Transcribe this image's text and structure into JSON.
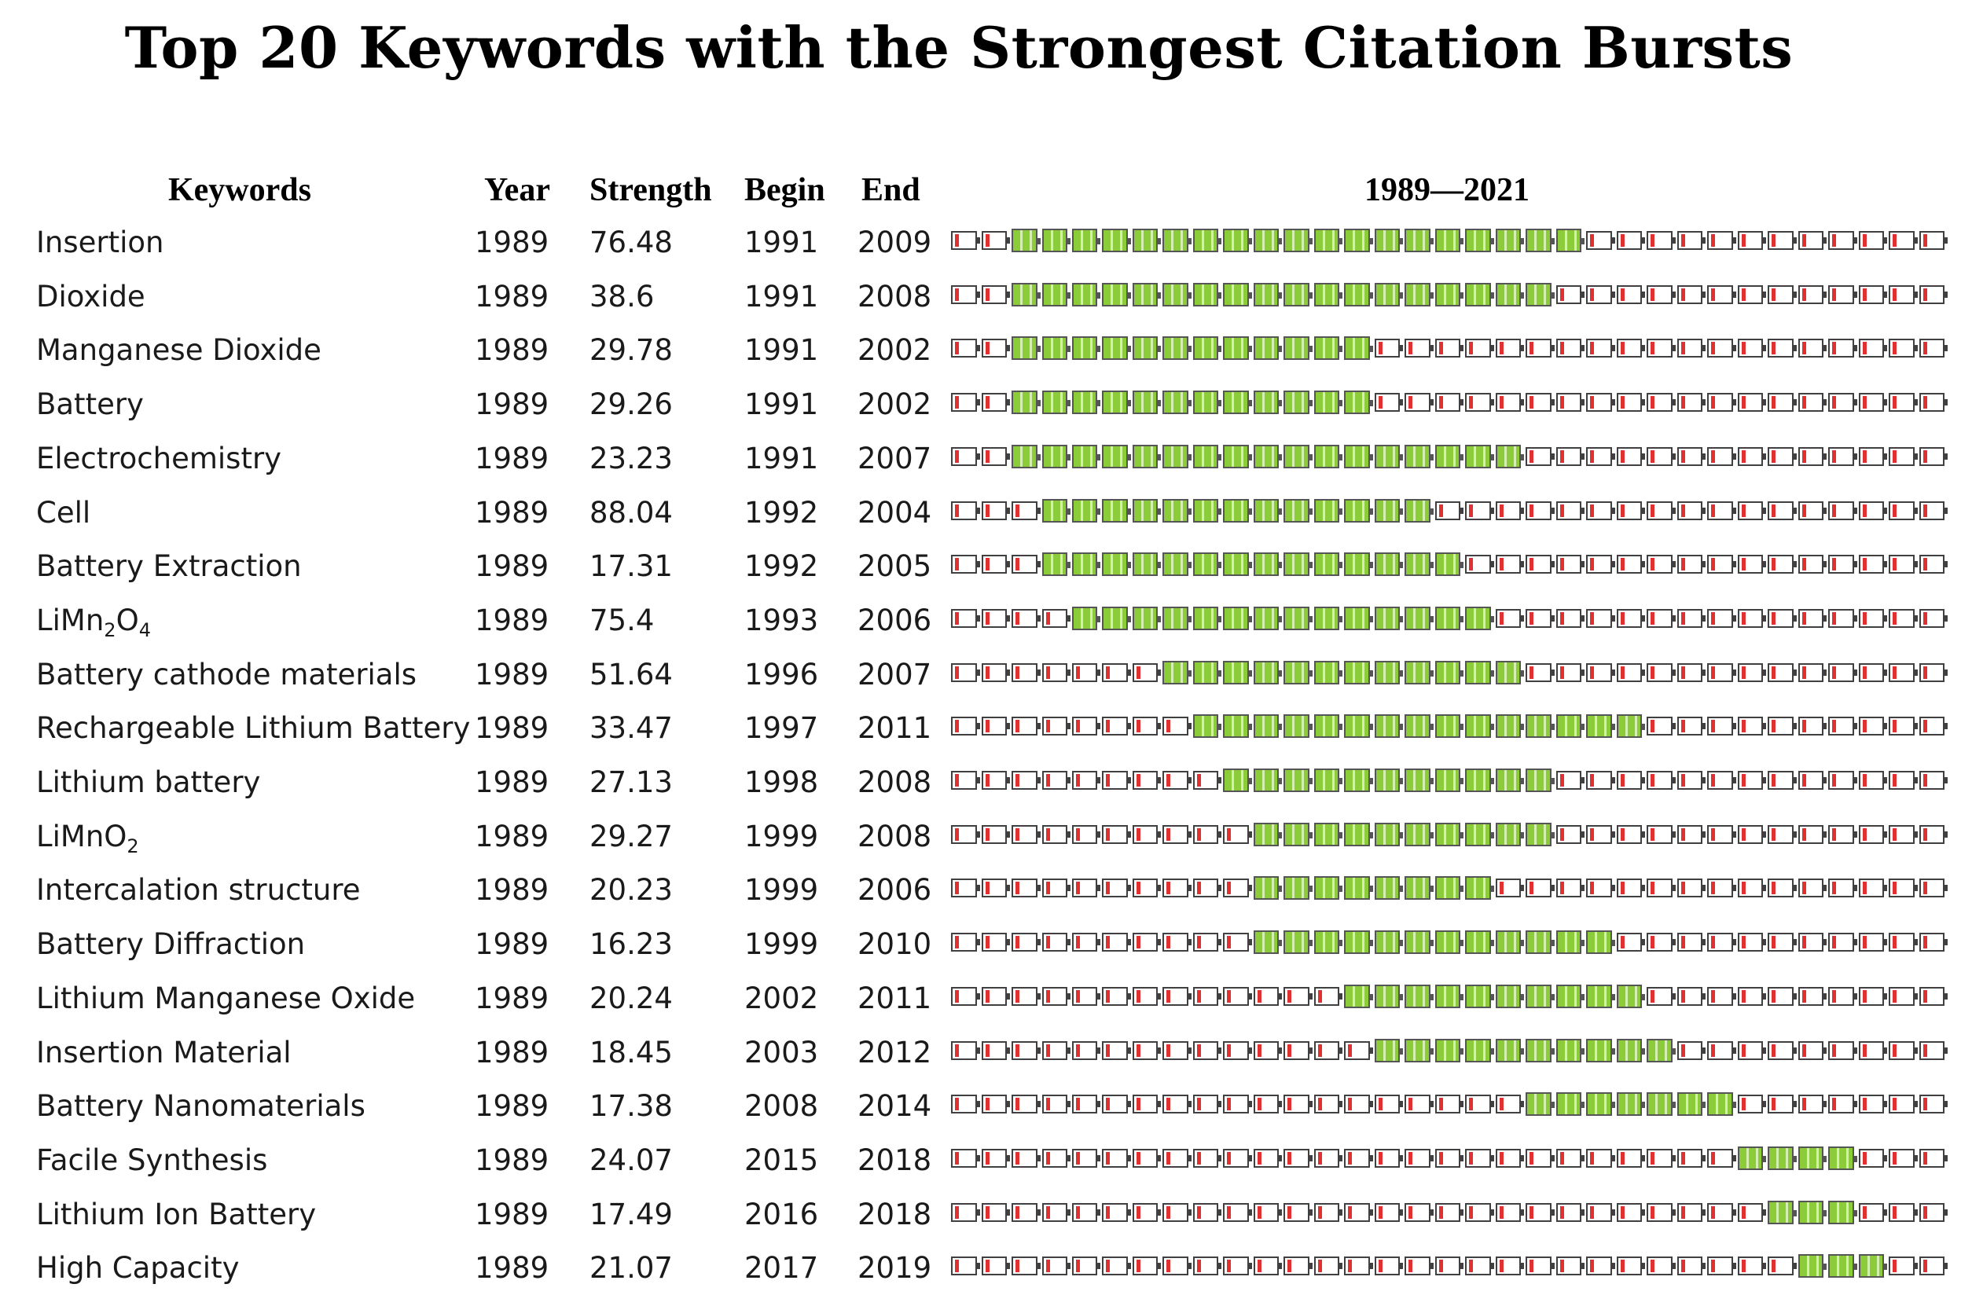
{
  "chart_data": {
    "type": "table",
    "title": "Top 20 Keywords with the Strongest Citation Bursts",
    "columns": [
      "Keywords",
      "Year",
      "Strength",
      "Begin",
      "End",
      "1989—2021"
    ],
    "timeline": {
      "start": 1989,
      "end": 2021
    },
    "rows": [
      {
        "keyword": "Insertion",
        "year": "1989",
        "strength": "76.48",
        "begin": "1991",
        "end": "2009"
      },
      {
        "keyword": "Dioxide",
        "year": "1989",
        "strength": "38.6",
        "begin": "1991",
        "end": "2008"
      },
      {
        "keyword": "Manganese Dioxide",
        "year": "1989",
        "strength": "29.78",
        "begin": "1991",
        "end": "2002"
      },
      {
        "keyword": "Battery",
        "year": "1989",
        "strength": "29.26",
        "begin": "1991",
        "end": "2002"
      },
      {
        "keyword": "Electrochemistry",
        "year": "1989",
        "strength": "23.23",
        "begin": "1991",
        "end": "2007"
      },
      {
        "keyword": "Cell",
        "year": "1989",
        "strength": "88.04",
        "begin": "1992",
        "end": "2004"
      },
      {
        "keyword": "Battery Extraction",
        "year": "1989",
        "strength": "17.31",
        "begin": "1992",
        "end": "2005"
      },
      {
        "keyword": "LiMn",
        "sub1": "2",
        "keyword_mid": "O",
        "sub2": "4",
        "year": "1989",
        "strength": "75.4",
        "begin": "1993",
        "end": "2006"
      },
      {
        "keyword": "Battery cathode materials",
        "year": "1989",
        "strength": "51.64",
        "begin": "1996",
        "end": "2007"
      },
      {
        "keyword": "Rechargeable Lithium Battery",
        "year": "1989",
        "strength": "33.47",
        "begin": "1997",
        "end": "2011"
      },
      {
        "keyword": "Lithium battery",
        "year": "1989",
        "strength": "27.13",
        "begin": "1998",
        "end": "2008"
      },
      {
        "keyword": "LiMnO",
        "sub1": "2",
        "year": "1989",
        "strength": "29.27",
        "begin": "1999",
        "end": "2008"
      },
      {
        "keyword": "Intercalation structure",
        "year": "1989",
        "strength": "20.23",
        "begin": "1999",
        "end": "2006"
      },
      {
        "keyword": "Battery Diffraction",
        "year": "1989",
        "strength": "16.23",
        "begin": "1999",
        "end": "2010"
      },
      {
        "keyword": "Lithium Manganese Oxide",
        "year": "1989",
        "strength": "20.24",
        "begin": "2002",
        "end": "2011"
      },
      {
        "keyword": "Insertion Material",
        "year": "1989",
        "strength": "18.45",
        "begin": "2003",
        "end": "2012"
      },
      {
        "keyword": "Battery Nanomaterials",
        "year": "1989",
        "strength": "17.38",
        "begin": "2008",
        "end": "2014"
      },
      {
        "keyword": "Facile Synthesis",
        "year": "1989",
        "strength": "24.07",
        "begin": "2015",
        "end": "2018"
      },
      {
        "keyword": "Lithium Ion Battery",
        "year": "1989",
        "strength": "17.49",
        "begin": "2016",
        "end": "2018"
      },
      {
        "keyword": "High Capacity",
        "year": "1989",
        "strength": "21.07",
        "begin": "2017",
        "end": "2019"
      }
    ],
    "colors": {
      "burst": "#8ccb3a",
      "inactive_mark": "#e03030",
      "outline": "#404040"
    }
  }
}
